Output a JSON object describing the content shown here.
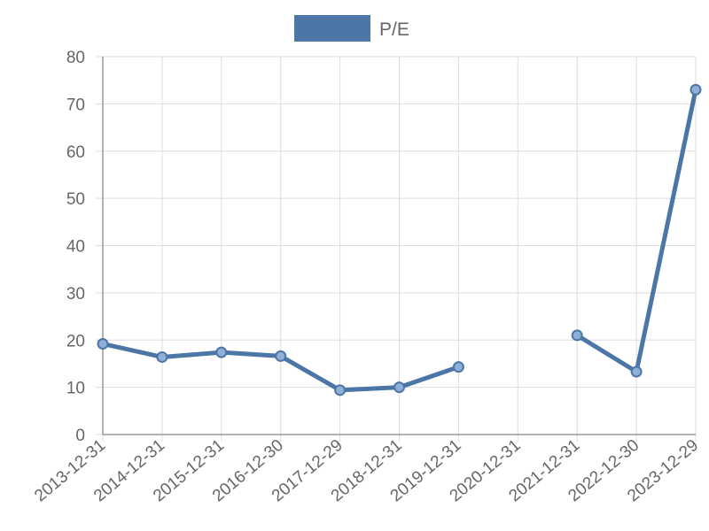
{
  "chart_data": {
    "type": "line",
    "categories": [
      "2013-12-31",
      "2014-12-31",
      "2015-12-31",
      "2016-12-30",
      "2017-12-29",
      "2018-12-31",
      "2019-12-31",
      "2020-12-31",
      "2021-12-31",
      "2022-12-30",
      "2023-12-29"
    ],
    "series": [
      {
        "name": "P/E",
        "values": [
          19.2,
          16.4,
          17.4,
          16.6,
          9.4,
          10.0,
          14.3,
          null,
          21.0,
          13.3,
          73.0
        ]
      }
    ],
    "ylim": [
      0,
      80
    ],
    "yticks": [
      0,
      10,
      20,
      30,
      40,
      50,
      60,
      70,
      80
    ],
    "grid": true,
    "legend_position": "top-center",
    "colors": {
      "line": "#4b76a6",
      "point_fill": "#8fb0d6",
      "grid": "#dddddd",
      "axis": "#999999",
      "text": "#666666"
    }
  }
}
